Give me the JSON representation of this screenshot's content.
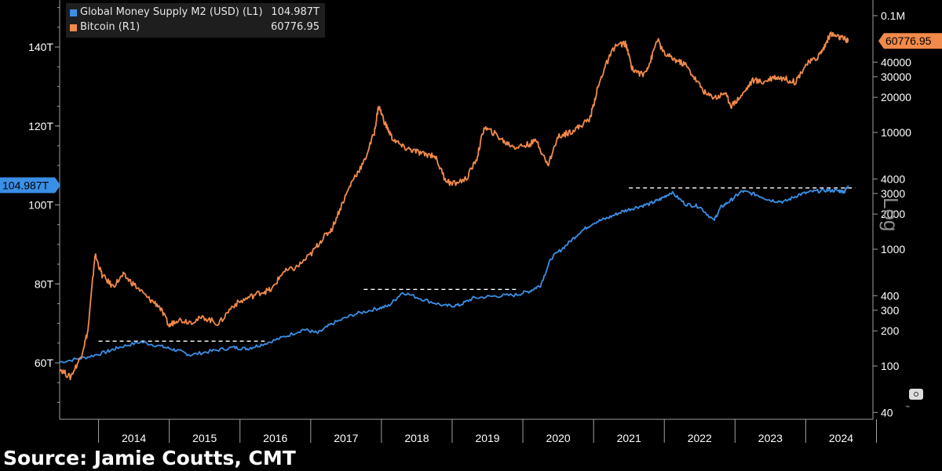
{
  "chart_data": {
    "type": "line",
    "title": "",
    "legend": [
      {
        "name": "Global Money Supply M2 (USD) (L1)",
        "value": "104.987T",
        "color": "#3a8fe6"
      },
      {
        "name": "Bitcoin (R1)",
        "value": "60776.95",
        "color": "#f28a4a"
      }
    ],
    "x_ticks": [
      "2014",
      "2015",
      "2016",
      "2017",
      "2018",
      "2019",
      "2020",
      "2021",
      "2022",
      "2023",
      "2024"
    ],
    "left_axis": {
      "ticks": [
        "60T",
        "80T",
        "100T",
        "120T",
        "140T"
      ],
      "tick_values": [
        60,
        80,
        100,
        120,
        140
      ],
      "ylim": [
        50,
        150
      ],
      "last_label": "104.987T"
    },
    "right_axis": {
      "scale": "log",
      "ticks": [
        "40",
        "100",
        "200",
        "300",
        "400",
        "1000",
        "2000",
        "3000",
        "4000",
        "10000",
        "20000",
        "30000",
        "40000",
        "0.1M"
      ],
      "tick_values": [
        40,
        100,
        200,
        300,
        400,
        1000,
        2000,
        3000,
        4000,
        10000,
        20000,
        30000,
        40000,
        100000
      ],
      "ylim": [
        38,
        115000
      ],
      "label": "Log",
      "last_label": "60776.95"
    },
    "series": [
      {
        "name": "Global Money Supply M2 (USD)",
        "axis": "left",
        "color": "#3a8fe6",
        "x": [
          2013.45,
          2013.8,
          2014.1,
          2014.3,
          2014.6,
          2014.9,
          2015.1,
          2015.3,
          2015.6,
          2015.9,
          2016.1,
          2016.3,
          2016.6,
          2016.9,
          2017.1,
          2017.3,
          2017.6,
          2017.9,
          2018.1,
          2018.3,
          2018.6,
          2018.9,
          2019.1,
          2019.3,
          2019.6,
          2019.9,
          2020.1,
          2020.25,
          2020.4,
          2020.6,
          2020.8,
          2021.0,
          2021.2,
          2021.4,
          2021.6,
          2021.8,
          2021.95,
          2022.1,
          2022.3,
          2022.5,
          2022.7,
          2022.8,
          2022.95,
          2023.1,
          2023.3,
          2023.5,
          2023.7,
          2023.9,
          2024.1,
          2024.3,
          2024.45,
          2024.55,
          2024.6
        ],
        "values": [
          60.2,
          61.3,
          62.7,
          64.0,
          65.3,
          64.1,
          63.2,
          62.0,
          63.0,
          63.9,
          63.6,
          64.6,
          66.4,
          68.5,
          67.5,
          69.9,
          72.2,
          73.6,
          74.4,
          77.9,
          76.0,
          74.4,
          74.6,
          76.4,
          76.9,
          77.2,
          78.2,
          79.7,
          86.5,
          89.6,
          93.0,
          95.5,
          96.7,
          98.3,
          99.4,
          100.3,
          101.5,
          103.2,
          100.2,
          99.6,
          96.0,
          99.4,
          101.3,
          103.5,
          102.6,
          101.2,
          100.8,
          102.6,
          103.4,
          103.7,
          103.6,
          103.4,
          104.987
        ]
      },
      {
        "name": "Bitcoin",
        "axis": "right",
        "color": "#f28a4a",
        "x": [
          2013.45,
          2013.6,
          2013.75,
          2013.85,
          2013.95,
          2014.05,
          2014.2,
          2014.35,
          2014.5,
          2014.7,
          2014.85,
          2015.0,
          2015.1,
          2015.3,
          2015.5,
          2015.7,
          2015.9,
          2016.1,
          2016.3,
          2016.45,
          2016.6,
          2016.8,
          2017.0,
          2017.15,
          2017.3,
          2017.45,
          2017.6,
          2017.75,
          2017.9,
          2017.96,
          2018.05,
          2018.15,
          2018.3,
          2018.45,
          2018.6,
          2018.75,
          2018.9,
          2019.0,
          2019.2,
          2019.35,
          2019.45,
          2019.6,
          2019.75,
          2019.9,
          2020.05,
          2020.2,
          2020.35,
          2020.5,
          2020.65,
          2020.8,
          2020.95,
          2021.05,
          2021.15,
          2021.3,
          2021.45,
          2021.55,
          2021.7,
          2021.8,
          2021.9,
          2022.0,
          2022.15,
          2022.3,
          2022.45,
          2022.6,
          2022.75,
          2022.85,
          2022.95,
          2023.1,
          2023.25,
          2023.4,
          2023.55,
          2023.7,
          2023.85,
          2024.0,
          2024.15,
          2024.25,
          2024.35,
          2024.45,
          2024.55,
          2024.6
        ],
        "values": [
          95,
          80,
          120,
          200,
          900,
          600,
          480,
          600,
          500,
          380,
          330,
          220,
          250,
          240,
          260,
          230,
          330,
          380,
          430,
          450,
          630,
          700,
          900,
          1200,
          1500,
          2500,
          4000,
          5500,
          10000,
          17000,
          12000,
          9000,
          7500,
          7000,
          6500,
          6400,
          4000,
          3600,
          4000,
          6000,
          11000,
          9800,
          8200,
          7500,
          7800,
          8500,
          5200,
          9200,
          10000,
          11200,
          13200,
          23000,
          35000,
          55000,
          58000,
          35000,
          31000,
          40000,
          63000,
          47000,
          42000,
          38000,
          28000,
          21000,
          20000,
          22000,
          17000,
          21000,
          28000,
          27000,
          30000,
          29000,
          27000,
          38000,
          43000,
          52000,
          70000,
          66000,
          63000,
          60776.95
        ]
      }
    ],
    "reference_lines": [
      {
        "x_start": 2014.0,
        "x_end": 2016.35,
        "value": 65.5
      },
      {
        "x_start": 2017.75,
        "x_end": 2019.95,
        "value": 78.6
      },
      {
        "x_start": 2021.5,
        "x_end": 2024.7,
        "value": 104.3
      }
    ],
    "grid": false
  },
  "source_text": "Source: Jamie Coutts, CMT",
  "colors": {
    "m2": "#3a8fe6",
    "btc": "#f28a4a",
    "background": "#000000",
    "axis": "#a0a0a0"
  }
}
